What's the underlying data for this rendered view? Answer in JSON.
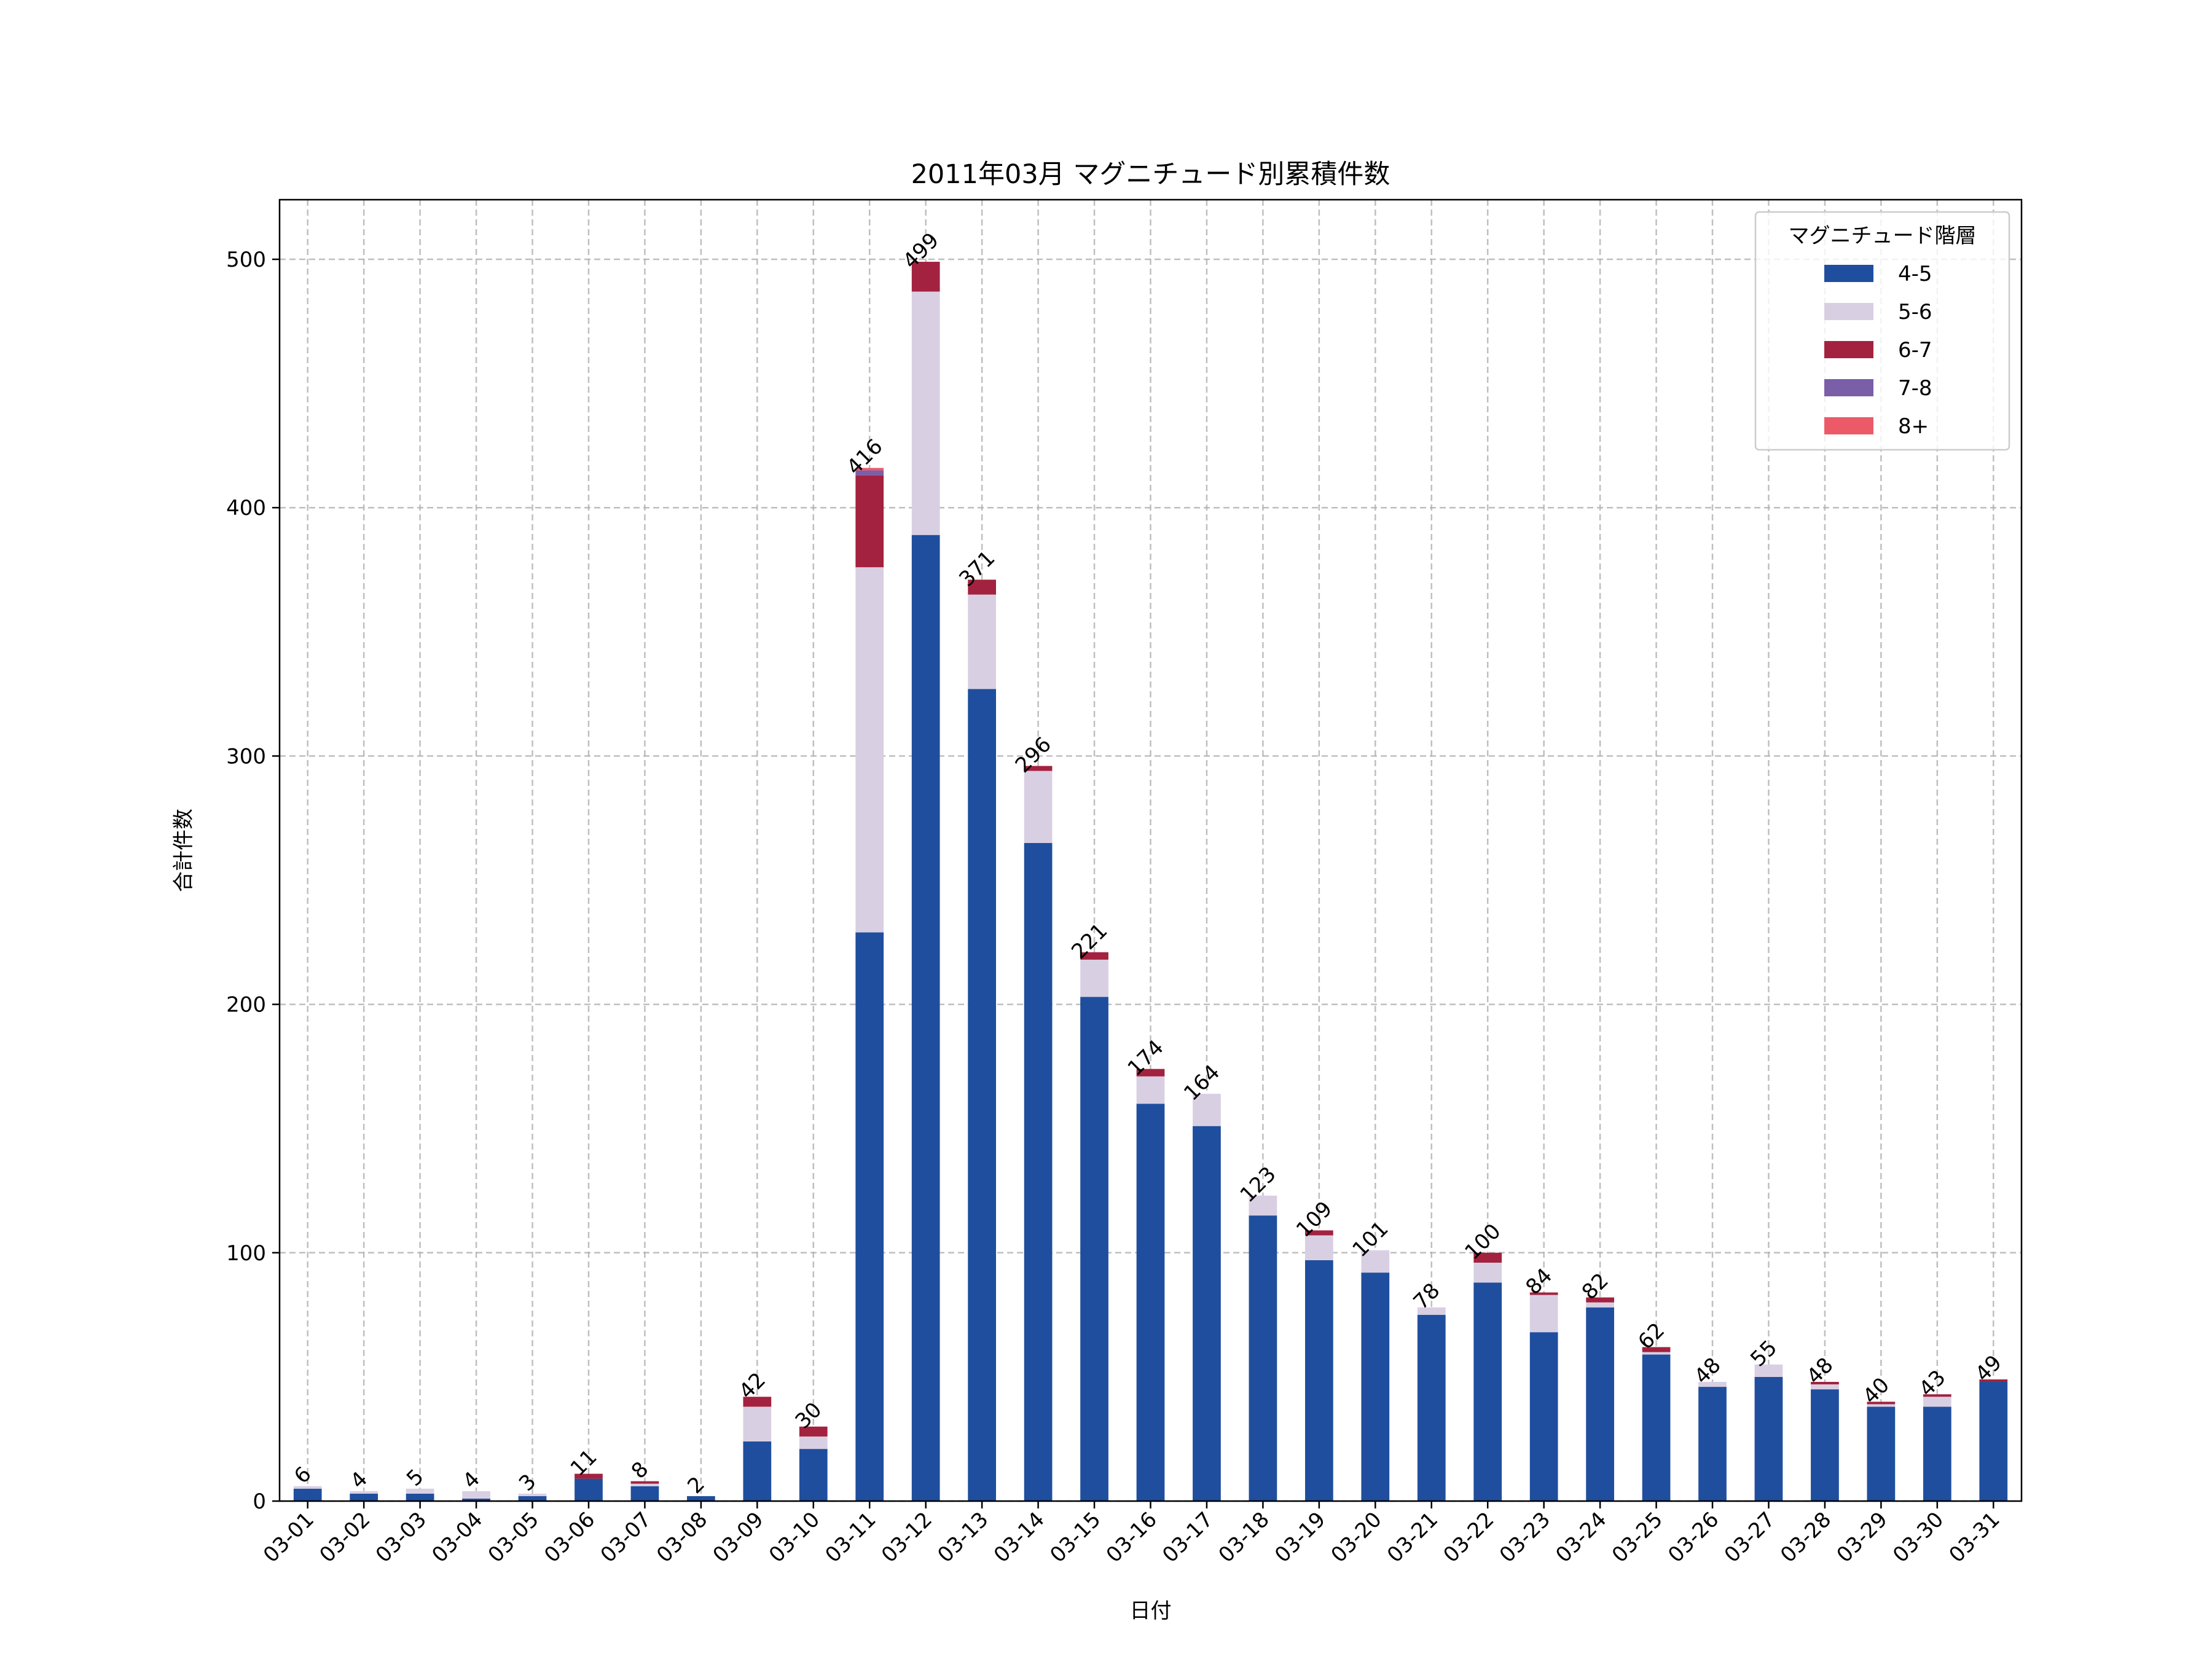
{
  "chart_data": {
    "type": "bar",
    "stacked": true,
    "title": "2011年03月 マグニチュード別累積件数",
    "xlabel": "日付",
    "ylabel": "合計件数",
    "ylim": [
      0,
      524
    ],
    "yticks": [
      0,
      100,
      200,
      300,
      400,
      500
    ],
    "grid": true,
    "legend_title": "マグニチュード階層",
    "legend_position": "top-right",
    "categories": [
      "03-01",
      "03-02",
      "03-03",
      "03-04",
      "03-05",
      "03-06",
      "03-07",
      "03-08",
      "03-09",
      "03-10",
      "03-11",
      "03-12",
      "03-13",
      "03-14",
      "03-15",
      "03-16",
      "03-17",
      "03-18",
      "03-19",
      "03-20",
      "03-21",
      "03-22",
      "03-23",
      "03-24",
      "03-25",
      "03-26",
      "03-27",
      "03-28",
      "03-29",
      "03-30",
      "03-31"
    ],
    "series": [
      {
        "name": "4-5",
        "color": "#1f4e9e",
        "values": [
          5,
          3,
          3,
          1,
          2,
          9,
          6,
          2,
          24,
          21,
          229,
          389,
          327,
          265,
          203,
          160,
          151,
          115,
          97,
          92,
          75,
          88,
          68,
          78,
          59,
          46,
          50,
          45,
          38,
          38,
          48
        ]
      },
      {
        "name": "5-6",
        "color": "#d9cfe3",
        "values": [
          1,
          1,
          2,
          3,
          1,
          0,
          1,
          0,
          14,
          5,
          147,
          98,
          38,
          29,
          15,
          11,
          13,
          8,
          10,
          9,
          3,
          8,
          15,
          2,
          1,
          2,
          5,
          2,
          1,
          4,
          0
        ]
      },
      {
        "name": "6-7",
        "color": "#a3223f",
        "values": [
          0,
          0,
          0,
          0,
          0,
          2,
          1,
          0,
          4,
          4,
          37,
          12,
          6,
          2,
          3,
          3,
          0,
          0,
          2,
          0,
          0,
          4,
          1,
          2,
          2,
          0,
          0,
          1,
          1,
          1,
          1
        ]
      },
      {
        "name": "7-8",
        "color": "#7b5ea8",
        "values": [
          0,
          0,
          0,
          0,
          0,
          0,
          0,
          0,
          0,
          0,
          2,
          0,
          0,
          0,
          0,
          0,
          0,
          0,
          0,
          0,
          0,
          0,
          0,
          0,
          0,
          0,
          0,
          0,
          0,
          0,
          0
        ]
      },
      {
        "name": "8+",
        "color": "#ec5a68",
        "values": [
          0,
          0,
          0,
          0,
          0,
          0,
          0,
          0,
          0,
          0,
          1,
          0,
          0,
          0,
          0,
          0,
          0,
          0,
          0,
          0,
          0,
          0,
          0,
          0,
          0,
          0,
          0,
          0,
          0,
          0,
          0
        ]
      }
    ],
    "totals": [
      6,
      4,
      5,
      4,
      3,
      11,
      8,
      2,
      42,
      30,
      416,
      499,
      371,
      296,
      221,
      174,
      164,
      123,
      109,
      101,
      78,
      100,
      84,
      82,
      62,
      48,
      55,
      48,
      40,
      43,
      49
    ]
  }
}
